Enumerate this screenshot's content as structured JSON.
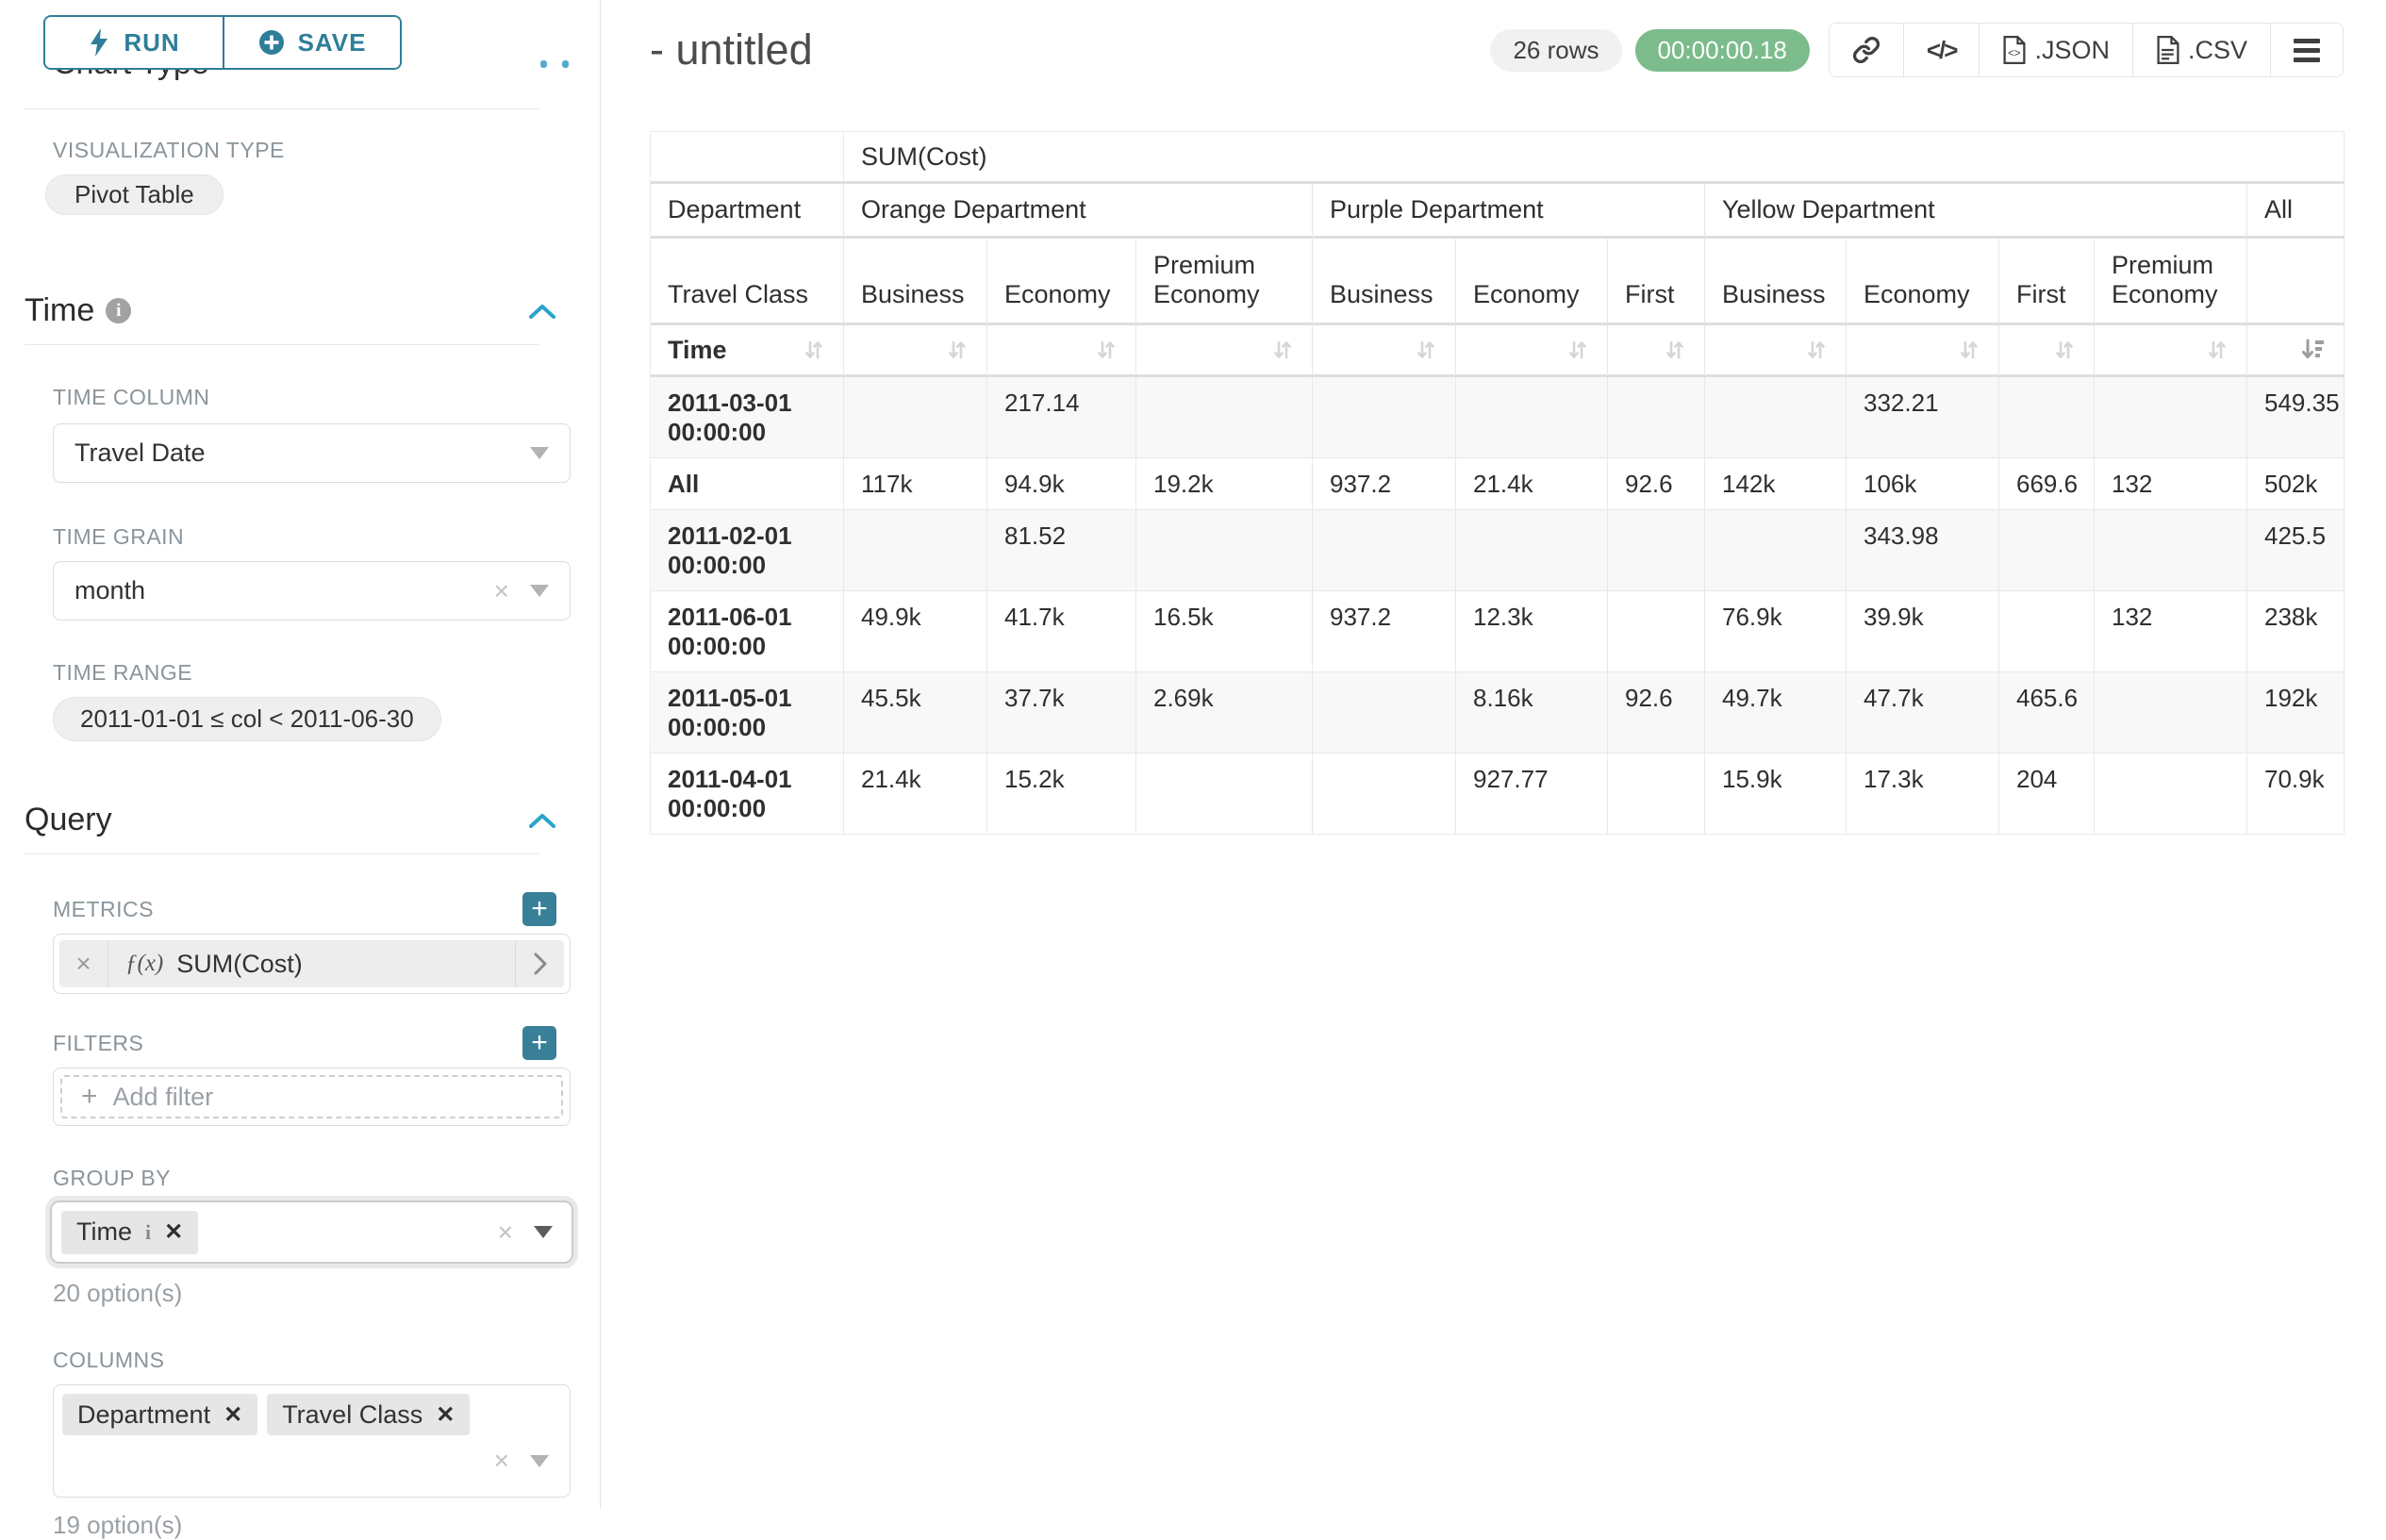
{
  "colors": {
    "accent_teal": "#2f7e99",
    "section_blue": "#29a5cb",
    "plus_teal": "#3a7f98",
    "timer_green": "#7cbc8c"
  },
  "sidebar": {
    "run_label": "RUN",
    "save_label": "SAVE",
    "chart_type_heading": "Chart Type",
    "viz_type_label": "VISUALIZATION TYPE",
    "viz_type_value": "Pivot Table",
    "time_section": {
      "title": "Time",
      "time_column_label": "TIME COLUMN",
      "time_column_value": "Travel Date",
      "time_grain_label": "TIME GRAIN",
      "time_grain_value": "month",
      "time_range_label": "TIME RANGE",
      "time_range_value": "2011-01-01 ≤ col < 2011-06-30"
    },
    "query_section": {
      "title": "Query",
      "metrics_label": "METRICS",
      "metric_fx": "ƒ(x)",
      "metric_value": "SUM(Cost)",
      "filters_label": "FILTERS",
      "add_filter_label": "Add filter",
      "group_by_label": "GROUP BY",
      "group_by_chips": [
        "Time"
      ],
      "group_by_hint": "20 option(s)",
      "columns_label": "COLUMNS",
      "columns_chips": [
        "Department",
        "Travel Class"
      ],
      "columns_hint": "19 option(s)"
    }
  },
  "header": {
    "title": "- untitled",
    "row_count": "26 rows",
    "timer": "00:00:00.18",
    "json_label": ".JSON",
    "csv_label": ".CSV"
  },
  "table": {
    "metric_header": "SUM(Cost)",
    "department_label": "Department",
    "travel_class_label": "Travel Class",
    "time_label": "Time",
    "groups": [
      {
        "name": "Orange Department",
        "classes": [
          "Business",
          "Economy",
          "Premium Economy"
        ]
      },
      {
        "name": "Purple Department",
        "classes": [
          "Business",
          "Economy",
          "First"
        ]
      },
      {
        "name": "Yellow Department",
        "classes": [
          "Business",
          "Economy",
          "First",
          "Premium Economy"
        ]
      },
      {
        "name": "All",
        "classes": [
          ""
        ]
      }
    ],
    "sorted_desc_column": "All",
    "rows": [
      {
        "time": "2011-03-01 00:00:00",
        "values": [
          "",
          "217.14",
          "",
          "",
          "",
          "",
          "",
          "332.21",
          "",
          "",
          "549.35"
        ]
      },
      {
        "time": "All",
        "values": [
          "117k",
          "94.9k",
          "19.2k",
          "937.2",
          "21.4k",
          "92.6",
          "142k",
          "106k",
          "669.6",
          "132",
          "502k"
        ]
      },
      {
        "time": "2011-02-01 00:00:00",
        "values": [
          "",
          "81.52",
          "",
          "",
          "",
          "",
          "",
          "343.98",
          "",
          "",
          "425.5"
        ]
      },
      {
        "time": "2011-06-01 00:00:00",
        "values": [
          "49.9k",
          "41.7k",
          "16.5k",
          "937.2",
          "12.3k",
          "",
          "76.9k",
          "39.9k",
          "",
          "132",
          "238k"
        ]
      },
      {
        "time": "2011-05-01 00:00:00",
        "values": [
          "45.5k",
          "37.7k",
          "2.69k",
          "",
          "8.16k",
          "92.6",
          "49.7k",
          "47.7k",
          "465.6",
          "",
          "192k"
        ]
      },
      {
        "time": "2011-04-01 00:00:00",
        "values": [
          "21.4k",
          "15.2k",
          "",
          "",
          "927.77",
          "",
          "15.9k",
          "17.3k",
          "204",
          "",
          "70.9k"
        ]
      }
    ]
  }
}
